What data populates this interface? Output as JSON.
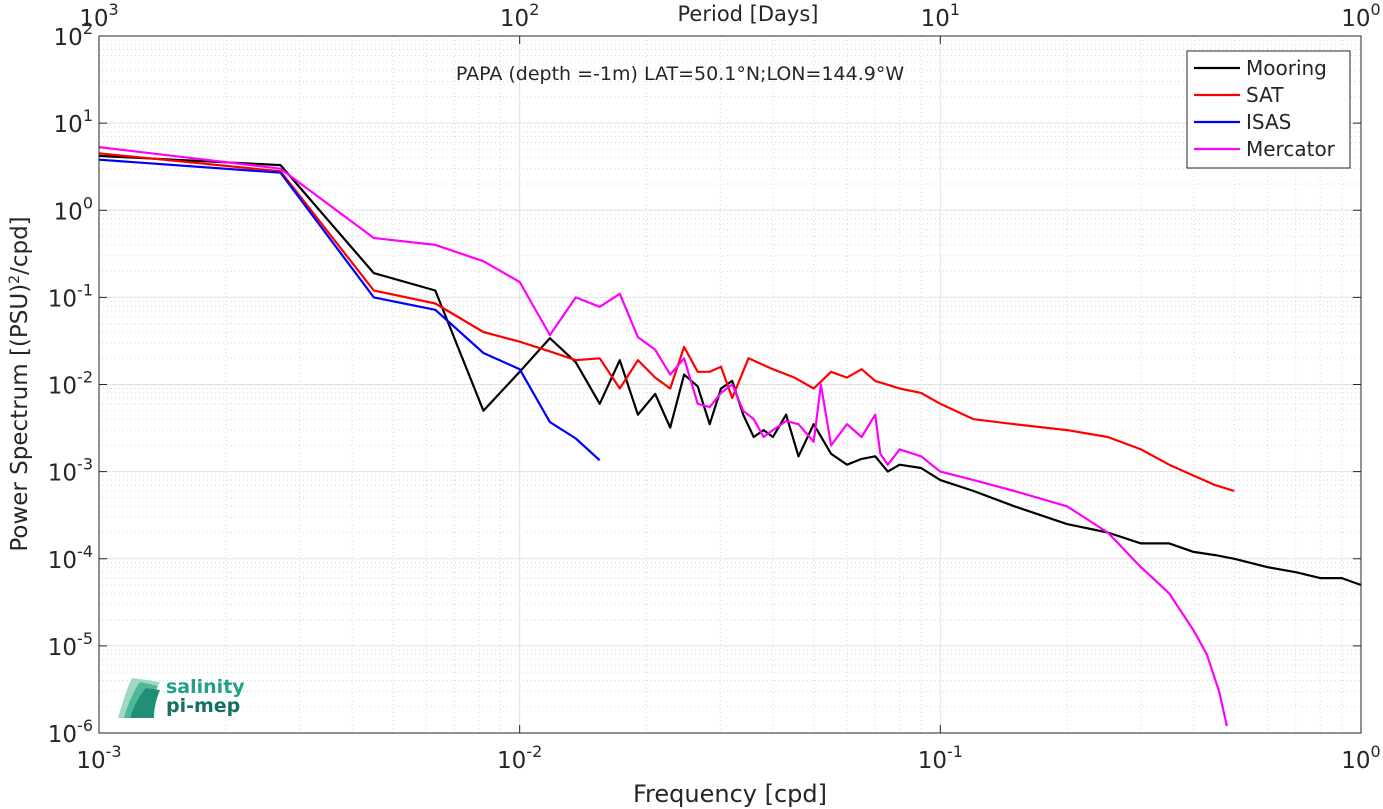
{
  "chart_data": {
    "type": "line",
    "title": "PAPA (depth =-1m) LAT=50.1°N;LON=144.9°W",
    "xlabel": "Frequency [cpd]",
    "ylabel": "Power Spectrum [(PSU)",
    "ylabel_sup": "2",
    "ylabel_tail": "/cpd]",
    "top_xlabel": "Period [Days]",
    "x_scale": "log",
    "y_scale": "log",
    "xlim": [
      0.001,
      1
    ],
    "ylim": [
      1e-06,
      100
    ],
    "grid": true,
    "legend_position": "top-right",
    "x_ticks": [
      {
        "value": 0.001,
        "base": "10",
        "exp": "-3"
      },
      {
        "value": 0.01,
        "base": "10",
        "exp": "-2"
      },
      {
        "value": 0.1,
        "base": "10",
        "exp": "-1"
      },
      {
        "value": 1,
        "base": "10",
        "exp": "0"
      }
    ],
    "top_ticks": [
      {
        "value": 0.001,
        "base": "10",
        "exp": "3"
      },
      {
        "value": 0.01,
        "base": "10",
        "exp": "2"
      },
      {
        "value": 0.1,
        "base": "10",
        "exp": "1"
      },
      {
        "value": 1,
        "base": "10",
        "exp": "0"
      }
    ],
    "y_ticks": [
      {
        "value": 100,
        "base": "10",
        "exp": "2"
      },
      {
        "value": 10,
        "base": "10",
        "exp": "1"
      },
      {
        "value": 1,
        "base": "10",
        "exp": "0"
      },
      {
        "value": 0.1,
        "base": "10",
        "exp": "-1"
      },
      {
        "value": 0.01,
        "base": "10",
        "exp": "-2"
      },
      {
        "value": 0.001,
        "base": "10",
        "exp": "-3"
      },
      {
        "value": 0.0001,
        "base": "10",
        "exp": "-4"
      },
      {
        "value": 1e-05,
        "base": "10",
        "exp": "-5"
      },
      {
        "value": 1e-06,
        "base": "10",
        "exp": "-6"
      }
    ],
    "series": [
      {
        "name": "Mooring",
        "color": "#000000",
        "x": [
          0.001,
          0.0027,
          0.0045,
          0.0063,
          0.0082,
          0.01,
          0.0118,
          0.0136,
          0.0155,
          0.0173,
          0.0191,
          0.021,
          0.0228,
          0.0246,
          0.0265,
          0.0283,
          0.0301,
          0.032,
          0.034,
          0.036,
          0.038,
          0.04,
          0.043,
          0.046,
          0.05,
          0.055,
          0.06,
          0.065,
          0.07,
          0.075,
          0.08,
          0.09,
          0.1,
          0.12,
          0.15,
          0.2,
          0.25,
          0.3,
          0.35,
          0.4,
          0.45,
          0.5,
          0.6,
          0.7,
          0.8,
          0.9,
          1.0
        ],
        "y": [
          4.2,
          3.3,
          0.19,
          0.12,
          0.005,
          0.014,
          0.034,
          0.018,
          0.006,
          0.019,
          0.0045,
          0.0078,
          0.0032,
          0.013,
          0.0095,
          0.0035,
          0.009,
          0.011,
          0.0045,
          0.0025,
          0.003,
          0.0025,
          0.0045,
          0.0015,
          0.0035,
          0.0016,
          0.0012,
          0.0014,
          0.0015,
          0.001,
          0.0012,
          0.0011,
          0.0008,
          0.0006,
          0.0004,
          0.00025,
          0.0002,
          0.00015,
          0.00015,
          0.00012,
          0.00011,
          0.0001,
          8e-05,
          7e-05,
          6e-05,
          6e-05,
          5e-05
        ]
      },
      {
        "name": "SAT",
        "color": "#ff0000",
        "x": [
          0.001,
          0.0027,
          0.0045,
          0.0063,
          0.0082,
          0.01,
          0.0118,
          0.0136,
          0.0155,
          0.0173,
          0.0191,
          0.021,
          0.0228,
          0.0246,
          0.0265,
          0.0283,
          0.0301,
          0.032,
          0.035,
          0.04,
          0.045,
          0.05,
          0.055,
          0.06,
          0.065,
          0.07,
          0.08,
          0.09,
          0.1,
          0.12,
          0.15,
          0.2,
          0.25,
          0.3,
          0.35,
          0.4,
          0.45,
          0.5
        ],
        "y": [
          4.5,
          2.8,
          0.12,
          0.085,
          0.04,
          0.031,
          0.024,
          0.019,
          0.02,
          0.009,
          0.019,
          0.012,
          0.009,
          0.027,
          0.014,
          0.014,
          0.016,
          0.007,
          0.02,
          0.015,
          0.012,
          0.009,
          0.014,
          0.012,
          0.015,
          0.011,
          0.009,
          0.008,
          0.006,
          0.004,
          0.0035,
          0.003,
          0.0025,
          0.0018,
          0.0012,
          0.0009,
          0.0007,
          0.0006
        ]
      },
      {
        "name": "ISAS",
        "color": "#0000ff",
        "x": [
          0.001,
          0.0027,
          0.0045,
          0.0063,
          0.0082,
          0.01,
          0.0118,
          0.0136,
          0.0155
        ],
        "y": [
          3.8,
          2.7,
          0.1,
          0.072,
          0.023,
          0.015,
          0.0037,
          0.0024,
          0.00135
        ]
      },
      {
        "name": "Mercator",
        "color": "#ff00ff",
        "x": [
          0.001,
          0.0027,
          0.0045,
          0.0063,
          0.0082,
          0.01,
          0.0118,
          0.0136,
          0.0155,
          0.0173,
          0.0191,
          0.021,
          0.0228,
          0.0246,
          0.0265,
          0.0283,
          0.0301,
          0.032,
          0.034,
          0.036,
          0.038,
          0.04,
          0.043,
          0.046,
          0.05,
          0.052,
          0.055,
          0.06,
          0.065,
          0.07,
          0.072,
          0.075,
          0.08,
          0.09,
          0.1,
          0.12,
          0.15,
          0.2,
          0.25,
          0.3,
          0.35,
          0.4,
          0.43,
          0.46,
          0.48
        ],
        "y": [
          5.3,
          3.0,
          0.48,
          0.4,
          0.26,
          0.15,
          0.037,
          0.1,
          0.078,
          0.11,
          0.035,
          0.025,
          0.013,
          0.02,
          0.006,
          0.0055,
          0.008,
          0.01,
          0.005,
          0.004,
          0.0025,
          0.003,
          0.0038,
          0.0035,
          0.0022,
          0.01,
          0.002,
          0.0035,
          0.0025,
          0.0045,
          0.0016,
          0.0012,
          0.0018,
          0.0015,
          0.001,
          0.0008,
          0.0006,
          0.0004,
          0.0002,
          8e-05,
          4e-05,
          1.5e-05,
          8e-06,
          3e-06,
          1.2e-06
        ]
      }
    ]
  },
  "logo": {
    "line1": "salinity",
    "line2": "pi-mep"
  }
}
